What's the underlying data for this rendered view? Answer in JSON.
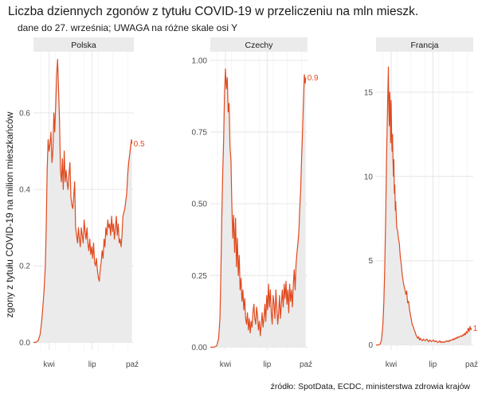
{
  "title": "Liczba dziennych zgonów z tytułu COVID-19 w przeliczeniu na mln mieszk.",
  "subtitle": "dane do 27. września; UWAGA na różne skale osi Y",
  "caption": "źródło: SpotData, ECDC, ministerstwa zdrowia krajów",
  "colors": {
    "line": "#e04a1f",
    "area": "#ebebeb",
    "grid": "#e6e6e6",
    "strip": "#ebebeb"
  },
  "chart_data": {
    "type": "area",
    "ylabel": "zgony z tytułu COVID-19 na milion mieszkańców",
    "x_axis": {
      "range": [
        0,
        212
      ],
      "ticks": [
        {
          "value": 33,
          "label": "kwi"
        },
        {
          "value": 124,
          "label": "lip"
        },
        {
          "value": 216,
          "label": "paź"
        }
      ]
    },
    "panels": [
      {
        "name": "Polska",
        "ylim": [
          -0.02,
          0.76
        ],
        "yticks": [
          0.0,
          0.2,
          0.4,
          0.6
        ],
        "ytick_labels": [
          "0.0",
          "0.2",
          "0.4",
          "0.6"
        ],
        "end_label": "0.5",
        "points": [
          [
            0,
            0
          ],
          [
            5,
            0
          ],
          [
            10,
            0.005
          ],
          [
            14,
            0.02
          ],
          [
            17,
            0.05
          ],
          [
            19,
            0.08
          ],
          [
            22,
            0.13
          ],
          [
            25,
            0.2
          ],
          [
            27,
            0.3
          ],
          [
            29,
            0.45
          ],
          [
            31,
            0.53
          ],
          [
            33,
            0.5
          ],
          [
            35,
            0.52
          ],
          [
            37,
            0.55
          ],
          [
            39,
            0.47
          ],
          [
            41,
            0.5
          ],
          [
            43,
            0.6
          ],
          [
            45,
            0.55
          ],
          [
            47,
            0.62
          ],
          [
            49,
            0.7
          ],
          [
            51,
            0.74
          ],
          [
            53,
            0.66
          ],
          [
            55,
            0.58
          ],
          [
            57,
            0.45
          ],
          [
            59,
            0.42
          ],
          [
            61,
            0.48
          ],
          [
            63,
            0.4
          ],
          [
            65,
            0.5
          ],
          [
            67,
            0.42
          ],
          [
            69,
            0.45
          ],
          [
            71,
            0.42
          ],
          [
            73,
            0.4
          ],
          [
            75,
            0.44
          ],
          [
            77,
            0.47
          ],
          [
            79,
            0.38
          ],
          [
            81,
            0.36
          ],
          [
            83,
            0.35
          ],
          [
            85,
            0.38
          ],
          [
            87,
            0.42
          ],
          [
            89,
            0.3
          ],
          [
            91,
            0.28
          ],
          [
            93,
            0.26
          ],
          [
            95,
            0.3
          ],
          [
            97,
            0.27
          ],
          [
            99,
            0.25
          ],
          [
            101,
            0.3
          ],
          [
            103,
            0.28
          ],
          [
            105,
            0.26
          ],
          [
            107,
            0.32
          ],
          [
            109,
            0.29
          ],
          [
            111,
            0.27
          ],
          [
            113,
            0.3
          ],
          [
            115,
            0.26
          ],
          [
            117,
            0.24
          ],
          [
            119,
            0.27
          ],
          [
            121,
            0.23
          ],
          [
            123,
            0.25
          ],
          [
            125,
            0.22
          ],
          [
            127,
            0.26
          ],
          [
            129,
            0.21
          ],
          [
            131,
            0.2
          ],
          [
            133,
            0.22
          ],
          [
            135,
            0.19
          ],
          [
            137,
            0.17
          ],
          [
            139,
            0.16
          ],
          [
            141,
            0.19
          ],
          [
            143,
            0.21
          ],
          [
            145,
            0.24
          ],
          [
            147,
            0.22
          ],
          [
            149,
            0.27
          ],
          [
            151,
            0.25
          ],
          [
            153,
            0.3
          ],
          [
            155,
            0.28
          ],
          [
            157,
            0.32
          ],
          [
            159,
            0.3
          ],
          [
            161,
            0.31
          ],
          [
            163,
            0.28
          ],
          [
            165,
            0.33
          ],
          [
            167,
            0.29
          ],
          [
            169,
            0.31
          ],
          [
            171,
            0.27
          ],
          [
            173,
            0.3
          ],
          [
            175,
            0.33
          ],
          [
            177,
            0.28
          ],
          [
            179,
            0.31
          ],
          [
            181,
            0.26
          ],
          [
            183,
            0.27
          ],
          [
            185,
            0.25
          ],
          [
            187,
            0.28
          ],
          [
            189,
            0.33
          ],
          [
            191,
            0.34
          ],
          [
            193,
            0.35
          ],
          [
            195,
            0.37
          ],
          [
            197,
            0.39
          ],
          [
            199,
            0.44
          ],
          [
            201,
            0.47
          ],
          [
            203,
            0.49
          ],
          [
            205,
            0.51
          ],
          [
            207,
            0.53
          ],
          [
            208,
            0.52
          ]
        ]
      },
      {
        "name": "Czechy",
        "ylim": [
          -0.01,
          1.03
        ],
        "yticks": [
          0.0,
          0.25,
          0.5,
          0.75,
          1.0
        ],
        "ytick_labels": [
          "0.00",
          "0.25",
          "0.50",
          "0.75",
          "1.00"
        ],
        "end_label": "0.9",
        "points": [
          [
            0,
            0
          ],
          [
            8,
            0
          ],
          [
            14,
            0.005
          ],
          [
            18,
            0.03
          ],
          [
            21,
            0.1
          ],
          [
            23,
            0.25
          ],
          [
            25,
            0.45
          ],
          [
            27,
            0.6
          ],
          [
            29,
            0.72
          ],
          [
            31,
            0.88
          ],
          [
            33,
            0.97
          ],
          [
            35,
            0.9
          ],
          [
            37,
            0.94
          ],
          [
            39,
            0.82
          ],
          [
            41,
            0.85
          ],
          [
            43,
            0.7
          ],
          [
            45,
            0.65
          ],
          [
            47,
            0.5
          ],
          [
            49,
            0.38
          ],
          [
            51,
            0.46
          ],
          [
            53,
            0.33
          ],
          [
            55,
            0.45
          ],
          [
            57,
            0.28
          ],
          [
            59,
            0.38
          ],
          [
            61,
            0.25
          ],
          [
            63,
            0.32
          ],
          [
            65,
            0.2
          ],
          [
            67,
            0.24
          ],
          [
            69,
            0.16
          ],
          [
            71,
            0.2
          ],
          [
            73,
            0.13
          ],
          [
            75,
            0.17
          ],
          [
            77,
            0.1
          ],
          [
            79,
            0.08
          ],
          [
            81,
            0.12
          ],
          [
            83,
            0.06
          ],
          [
            85,
            0.1
          ],
          [
            87,
            0.05
          ],
          [
            89,
            0.09
          ],
          [
            91,
            0.07
          ],
          [
            93,
            0.12
          ],
          [
            95,
            0.15
          ],
          [
            97,
            0.1
          ],
          [
            99,
            0.08
          ],
          [
            101,
            0.14
          ],
          [
            103,
            0.11
          ],
          [
            105,
            0.06
          ],
          [
            107,
            0.09
          ],
          [
            109,
            0.04
          ],
          [
            111,
            0.08
          ],
          [
            113,
            0.12
          ],
          [
            115,
            0.07
          ],
          [
            117,
            0.1
          ],
          [
            119,
            0.15
          ],
          [
            121,
            0.09
          ],
          [
            123,
            0.18
          ],
          [
            125,
            0.13
          ],
          [
            127,
            0.22
          ],
          [
            129,
            0.14
          ],
          [
            131,
            0.2
          ],
          [
            133,
            0.12
          ],
          [
            135,
            0.08
          ],
          [
            137,
            0.18
          ],
          [
            139,
            0.15
          ],
          [
            141,
            0.1
          ],
          [
            143,
            0.2
          ],
          [
            145,
            0.14
          ],
          [
            147,
            0.08
          ],
          [
            149,
            0.12
          ],
          [
            151,
            0.18
          ],
          [
            153,
            0.1
          ],
          [
            155,
            0.15
          ],
          [
            157,
            0.2
          ],
          [
            159,
            0.14
          ],
          [
            161,
            0.22
          ],
          [
            163,
            0.17
          ],
          [
            165,
            0.23
          ],
          [
            167,
            0.15
          ],
          [
            169,
            0.2
          ],
          [
            171,
            0.12
          ],
          [
            173,
            0.22
          ],
          [
            175,
            0.16
          ],
          [
            177,
            0.2
          ],
          [
            179,
            0.14
          ],
          [
            181,
            0.22
          ],
          [
            183,
            0.27
          ],
          [
            185,
            0.2
          ],
          [
            187,
            0.29
          ],
          [
            189,
            0.33
          ],
          [
            191,
            0.36
          ],
          [
            193,
            0.4
          ],
          [
            195,
            0.48
          ],
          [
            197,
            0.55
          ],
          [
            199,
            0.65
          ],
          [
            201,
            0.75
          ],
          [
            203,
            0.85
          ],
          [
            205,
            0.95
          ],
          [
            207,
            0.92
          ],
          [
            208,
            0.94
          ]
        ]
      },
      {
        "name": "Francja",
        "ylim": [
          -0.3,
          17.4
        ],
        "yticks": [
          0,
          5,
          10,
          15
        ],
        "ytick_labels": [
          "0",
          "5",
          "10",
          "15"
        ],
        "end_label": "1",
        "points": [
          [
            0,
            0
          ],
          [
            5,
            0
          ],
          [
            9,
            0.05
          ],
          [
            12,
            0.3
          ],
          [
            15,
            1.2
          ],
          [
            17,
            2.5
          ],
          [
            19,
            4.5
          ],
          [
            21,
            7.5
          ],
          [
            23,
            11
          ],
          [
            25,
            14
          ],
          [
            27,
            16.5
          ],
          [
            28,
            14
          ],
          [
            29,
            13
          ],
          [
            30,
            15
          ],
          [
            31,
            14
          ],
          [
            32,
            12
          ],
          [
            33,
            14.5
          ],
          [
            34,
            12.5
          ],
          [
            35,
            11.5
          ],
          [
            36,
            12.5
          ],
          [
            37,
            11
          ],
          [
            38,
            10
          ],
          [
            39,
            11
          ],
          [
            40,
            9
          ],
          [
            41,
            9.5
          ],
          [
            42,
            8
          ],
          [
            43,
            8.5
          ],
          [
            45,
            7
          ],
          [
            47,
            6.8
          ],
          [
            49,
            6.3
          ],
          [
            51,
            6
          ],
          [
            53,
            5.2
          ],
          [
            55,
            4.8
          ],
          [
            57,
            4.2
          ],
          [
            59,
            3.8
          ],
          [
            61,
            3.5
          ],
          [
            63,
            3.3
          ],
          [
            65,
            3
          ],
          [
            67,
            3.2
          ],
          [
            68,
            2.8
          ],
          [
            69,
            2.5
          ],
          [
            71,
            2.6
          ],
          [
            73,
            2.1
          ],
          [
            75,
            1.8
          ],
          [
            77,
            1.5
          ],
          [
            79,
            1.2
          ],
          [
            81,
            1.1
          ],
          [
            83,
            0.9
          ],
          [
            85,
            0.8
          ],
          [
            87,
            0.6
          ],
          [
            89,
            0.5
          ],
          [
            91,
            0.4
          ],
          [
            93,
            0.5
          ],
          [
            95,
            0.3
          ],
          [
            97,
            0.4
          ],
          [
            99,
            0.3
          ],
          [
            101,
            0.25
          ],
          [
            103,
            0.35
          ],
          [
            105,
            0.3
          ],
          [
            107,
            0.25
          ],
          [
            109,
            0.3
          ],
          [
            111,
            0.35
          ],
          [
            113,
            0.25
          ],
          [
            115,
            0.2
          ],
          [
            117,
            0.3
          ],
          [
            119,
            0.25
          ],
          [
            121,
            0.2
          ],
          [
            123,
            0.25
          ],
          [
            125,
            0.3
          ],
          [
            127,
            0.22
          ],
          [
            129,
            0.2
          ],
          [
            131,
            0.25
          ],
          [
            133,
            0.2
          ],
          [
            135,
            0.15
          ],
          [
            137,
            0.2
          ],
          [
            139,
            0.25
          ],
          [
            141,
            0.15
          ],
          [
            143,
            0.2
          ],
          [
            145,
            0.15
          ],
          [
            147,
            0.2
          ],
          [
            149,
            0.15
          ],
          [
            151,
            0.2
          ],
          [
            153,
            0.25
          ],
          [
            155,
            0.2
          ],
          [
            157,
            0.25
          ],
          [
            159,
            0.2
          ],
          [
            161,
            0.3
          ],
          [
            163,
            0.25
          ],
          [
            165,
            0.3
          ],
          [
            167,
            0.35
          ],
          [
            169,
            0.3
          ],
          [
            171,
            0.4
          ],
          [
            173,
            0.35
          ],
          [
            175,
            0.45
          ],
          [
            177,
            0.4
          ],
          [
            179,
            0.5
          ],
          [
            181,
            0.45
          ],
          [
            183,
            0.5
          ],
          [
            185,
            0.55
          ],
          [
            187,
            0.5
          ],
          [
            189,
            0.6
          ],
          [
            191,
            0.55
          ],
          [
            193,
            0.7
          ],
          [
            195,
            0.6
          ],
          [
            197,
            0.8
          ],
          [
            199,
            0.7
          ],
          [
            201,
            1.0
          ],
          [
            203,
            0.8
          ],
          [
            205,
            1.1
          ],
          [
            207,
            0.9
          ],
          [
            208,
            1.0
          ]
        ]
      }
    ]
  }
}
